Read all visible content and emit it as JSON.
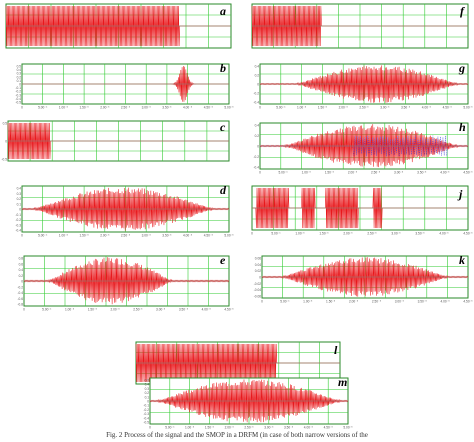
{
  "figure": {
    "caption": "Fig. 2 Process of the signal and the SMOP in a DRFM (in case of both narrow versions of the"
  },
  "colors": {
    "signal": "#e8181c",
    "grid": "#33cc33",
    "frame": "#2a8a2a",
    "axis": "#8a8a8a",
    "secondary": "#4a4adf"
  },
  "chart_data": [
    {
      "type": "line",
      "letter": "a",
      "pattern": "dense-burst",
      "burst_start": 0.0,
      "burst_end": 0.77,
      "y_ticks": [],
      "x_ticks": []
    },
    {
      "type": "line",
      "letter": "b",
      "pattern": "short-pulse",
      "pulse_center": 0.78,
      "y_ticks": [
        "0.5",
        "0.4",
        "0.3",
        "0.2",
        "0.1",
        "0",
        "-0.1",
        "-0.2",
        "-0.3",
        "-0.4",
        "-0.5"
      ],
      "x_ticks": [
        "0",
        "5.00⁻⁶",
        "1.00⁻⁵",
        "1.50⁻⁵",
        "2.00⁻⁵",
        "2.50⁻⁵",
        "3.00⁻⁵",
        "3.50⁻⁵",
        "4.00⁻⁵",
        "4.50⁻⁵",
        "5.00⁻⁵"
      ]
    },
    {
      "type": "line",
      "letter": "c",
      "pattern": "dense-burst",
      "burst_start": 0.0,
      "burst_end": 0.19,
      "y_ticks": [
        "0.5",
        "0",
        "-0.5"
      ],
      "x_ticks": []
    },
    {
      "type": "line",
      "letter": "d",
      "pattern": "envelope",
      "env_start": 0.06,
      "env_end": 0.92,
      "y_ticks": [
        "0.4",
        "0.3",
        "0.2",
        "0.1",
        "0",
        "-0.1",
        "-0.2",
        "-0.3",
        "-0.4"
      ],
      "x_ticks": [
        "0",
        "5.00⁻⁶",
        "1.00⁻⁵",
        "1.50⁻⁵",
        "2.00⁻⁵",
        "2.50⁻⁵",
        "3.00⁻⁵",
        "3.50⁻⁵",
        "4.00⁻⁵",
        "4.50⁻⁵",
        "5.00⁻⁵"
      ]
    },
    {
      "type": "line",
      "letter": "e",
      "pattern": "envelope",
      "env_start": 0.12,
      "env_end": 0.72,
      "y_ticks": [
        "0.8",
        "0.6",
        "0.4",
        "0.2",
        "0",
        "-0.2",
        "-0.4",
        "-0.6",
        "-0.8"
      ],
      "x_ticks": [
        "0",
        "5.00⁻⁶",
        "1.00⁻⁵",
        "1.50⁻⁵",
        "2.00⁻⁵",
        "2.50⁻⁵",
        "3.00⁻⁵",
        "3.50⁻⁵",
        "4.00⁻⁵",
        "4.50⁻⁵"
      ]
    },
    {
      "type": "line",
      "letter": "f",
      "pattern": "dense-burst",
      "burst_start": 0.0,
      "burst_end": 0.32,
      "y_ticks": [],
      "x_ticks": []
    },
    {
      "type": "line",
      "letter": "g",
      "pattern": "envelope",
      "env_start": 0.18,
      "env_end": 0.95,
      "y_ticks": [
        "0.4",
        "0.2",
        "0",
        "-0.2",
        "-0.4"
      ],
      "x_ticks": [
        "0",
        "5.00⁻⁶",
        "1.00⁻⁵",
        "1.50⁻⁵",
        "2.00⁻⁵",
        "2.50⁻⁵",
        "3.00⁻⁵",
        "3.50⁻⁵",
        "4.00⁻⁵",
        "4.50⁻⁵",
        "5.00⁻⁵"
      ]
    },
    {
      "type": "line",
      "letter": "h",
      "pattern": "mixed",
      "env_start": 0.12,
      "env_end": 0.95,
      "y_ticks": [
        "0.4",
        "0.2",
        "0",
        "-0.2",
        "-0.4"
      ],
      "x_ticks": [
        "0",
        "5.00⁻⁶",
        "1.00⁻⁵",
        "1.50⁻⁵",
        "2.00⁻⁵",
        "2.50⁻⁵",
        "3.00⁻⁵",
        "3.50⁻⁵",
        "4.00⁻⁵",
        "4.50⁻⁵"
      ]
    },
    {
      "type": "line",
      "letter": "j",
      "pattern": "blocks",
      "blocks": [
        [
          0.02,
          0.17
        ],
        [
          0.23,
          0.29
        ],
        [
          0.34,
          0.49
        ],
        [
          0.56,
          0.6
        ]
      ],
      "y_ticks": [],
      "x_ticks": [
        "0",
        "5.00⁻⁶",
        "1.00⁻⁵",
        "1.50⁻⁵",
        "2.00⁻⁵",
        "2.50⁻⁵",
        "3.00⁻⁵",
        "3.50⁻⁵",
        "4.00⁻⁵",
        "4.50⁻⁵"
      ]
    },
    {
      "type": "line",
      "letter": "k",
      "pattern": "envelope",
      "env_start": 0.1,
      "env_end": 0.9,
      "y_ticks": [
        "0.06",
        "0.04",
        "0.02",
        "0",
        "-0.02",
        "-0.04",
        "-0.06"
      ],
      "x_ticks": [
        "0",
        "5.00⁻⁶",
        "1.00⁻⁵",
        "1.50⁻⁵",
        "2.00⁻⁵",
        "2.50⁻⁵",
        "3.00⁻⁵",
        "3.50⁻⁵",
        "4.00⁻⁵",
        "4.50⁻⁵"
      ]
    },
    {
      "type": "line",
      "letter": "l",
      "pattern": "dense-burst",
      "burst_start": 0.0,
      "burst_end": 0.69,
      "y_ticks": [],
      "x_ticks": []
    },
    {
      "type": "line",
      "letter": "m",
      "pattern": "envelope",
      "env_start": 0.04,
      "env_end": 0.96,
      "y_ticks": [
        "0.5",
        "0.4",
        "0.3",
        "0.2",
        "0.1",
        "0",
        "-0.1",
        "-0.2",
        "-0.3",
        "-0.4",
        "-0.5"
      ],
      "x_ticks": [
        "0",
        "5.00⁻⁶",
        "1.00⁻⁵",
        "1.50⁻⁵",
        "2.00⁻⁵",
        "2.50⁻⁵",
        "3.00⁻⁵",
        "3.50⁻⁵",
        "4.00⁻⁵",
        "4.50⁻⁵",
        "5.00⁻⁵"
      ]
    }
  ]
}
